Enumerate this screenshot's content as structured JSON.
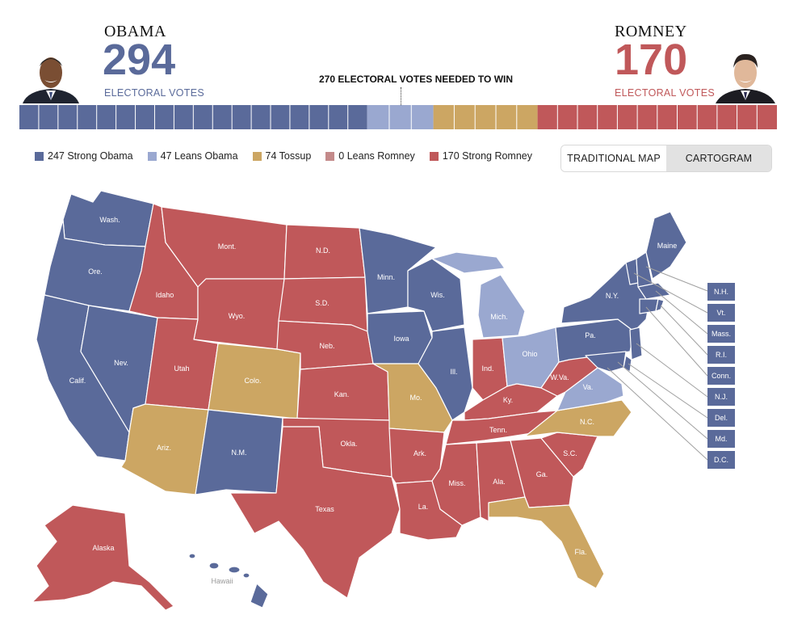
{
  "candidates": {
    "obama": {
      "name": "OBAMA",
      "votes": "294",
      "sub": "ELECTORAL VOTES",
      "color": "#5a6a9a"
    },
    "romney": {
      "name": "ROMNEY",
      "votes": "170",
      "sub": "ELECTORAL VOTES",
      "color": "#c0585a"
    }
  },
  "needed_text": "270 ELECTORAL VOTES NEEDED TO WIN",
  "colors": {
    "strong_obama": "#5a6a9a",
    "leans_obama": "#9aa8d0",
    "tossup": "#cca663",
    "leans_romney": "#c48a8a",
    "strong_romney": "#c0585a"
  },
  "legend": [
    {
      "label": "247 Strong Obama",
      "color": "#5a6a9a"
    },
    {
      "label": "47 Leans Obama",
      "color": "#9aa8d0"
    },
    {
      "label": "74 Tossup",
      "color": "#cca663"
    },
    {
      "label": "0 Leans Romney",
      "color": "#c48a8a"
    },
    {
      "label": "170 Strong Romney",
      "color": "#c0585a"
    }
  ],
  "toggle": {
    "traditional": "TRADITIONAL MAP",
    "cartogram": "CARTOGRAM"
  },
  "bar": {
    "segments": [
      {
        "category": "strong_obama",
        "votes": 247
      },
      {
        "category": "leans_obama",
        "votes": 47
      },
      {
        "category": "tossup",
        "votes": 74
      },
      {
        "category": "leans_romney",
        "votes": 0
      },
      {
        "category": "strong_romney",
        "votes": 170
      }
    ]
  },
  "states": {
    "wa": "Wash.",
    "or": "Ore.",
    "ca": "Calif.",
    "nv": "Nev.",
    "id": "Idaho",
    "mt": "Mont.",
    "wy": "Wyo.",
    "ut": "Utah",
    "co": "Colo.",
    "az": "Ariz.",
    "nm": "N.M.",
    "nd": "N.D.",
    "sd": "S.D.",
    "ne": "Neb.",
    "ks": "Kan.",
    "ok": "Okla.",
    "tx": "Texas",
    "mn": "Minn.",
    "ia": "Iowa",
    "mo": "Mo.",
    "ar": "Ark.",
    "la": "La.",
    "wi": "Wis.",
    "il": "Ill.",
    "mi": "Mich.",
    "in": "Ind.",
    "oh": "Ohio",
    "ky": "Ky.",
    "tn": "Tenn.",
    "ms": "Miss.",
    "al": "Ala.",
    "ga": "Ga.",
    "fl": "Fla.",
    "sc": "S.C.",
    "nc": "N.C.",
    "va": "Va.",
    "wv": "W.Va.",
    "pa": "Pa.",
    "ny": "N.Y.",
    "me": "Maine",
    "ak": "Alaska",
    "hi": "Hawaii"
  },
  "small_states": [
    "N.H.",
    "Vt.",
    "Mass.",
    "R.I.",
    "Conn.",
    "N.J.",
    "Del.",
    "Md.",
    "D.C."
  ]
}
